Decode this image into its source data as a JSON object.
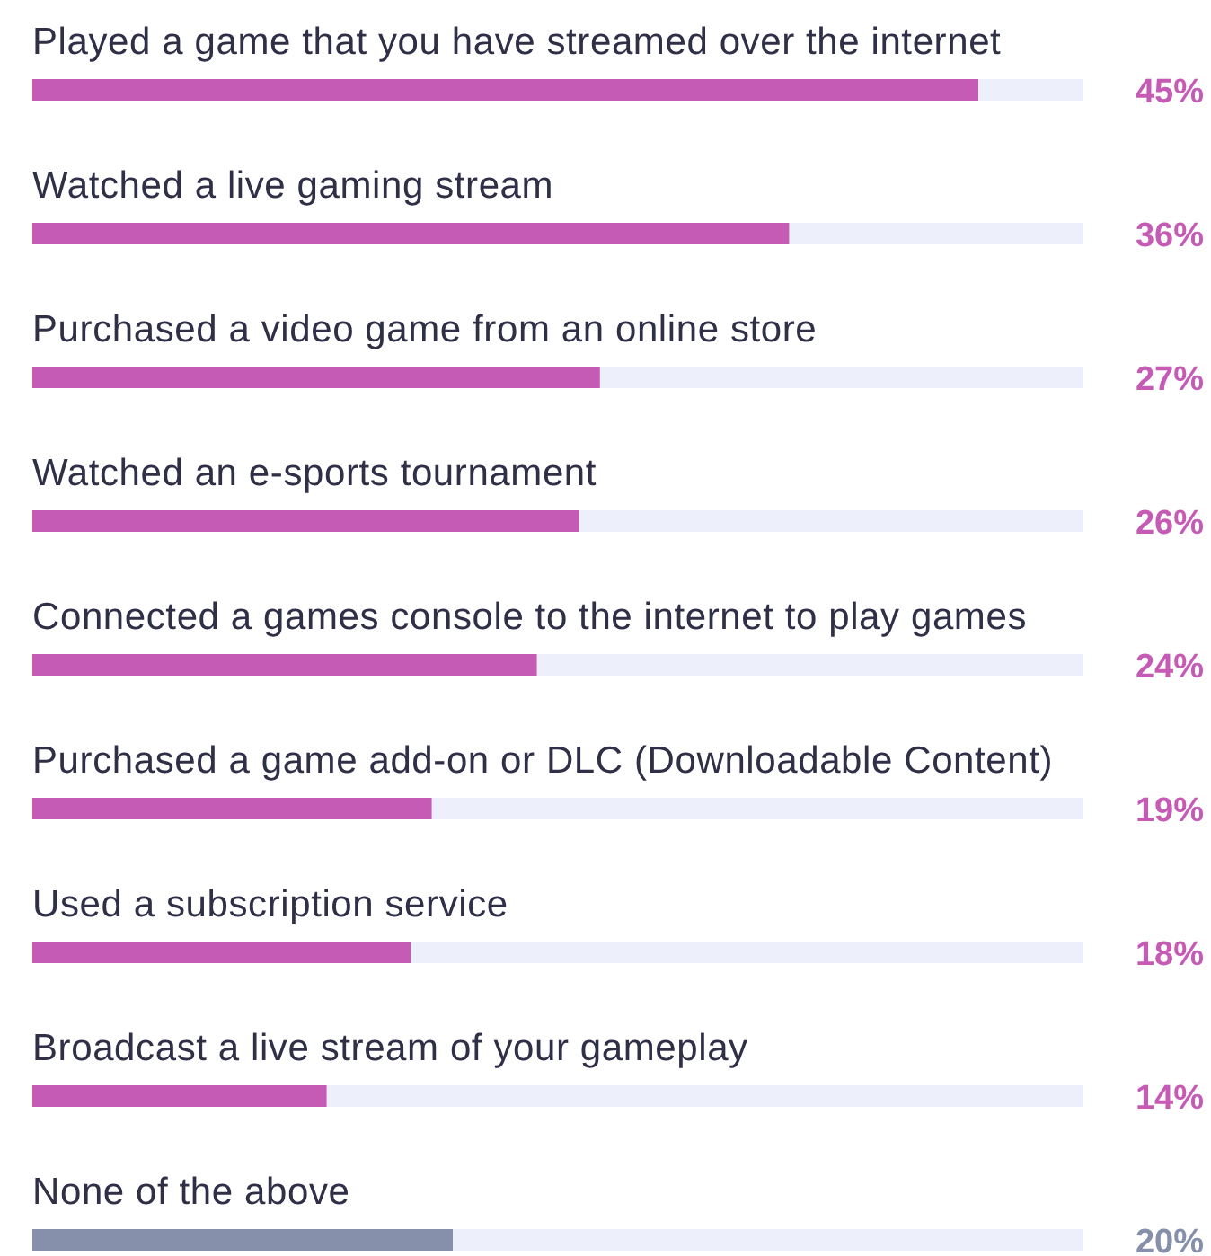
{
  "chart_data": {
    "type": "bar",
    "orientation": "horizontal",
    "xlim": [
      0,
      50
    ],
    "categories": [
      "Played a game that you have streamed over the internet",
      "Watched a live gaming stream",
      "Purchased a video game from an online store",
      "Watched an e-sports tournament",
      "Connected a games console to the internet to play games",
      "Purchased a game add-on or DLC (Downloadable Content)",
      "Used a subscription service",
      "Broadcast a live stream of your gameplay",
      "None of the above"
    ],
    "values": [
      45,
      36,
      27,
      26,
      24,
      19,
      18,
      14,
      20
    ],
    "value_labels": [
      "45%",
      "36%",
      "27%",
      "26%",
      "24%",
      "19%",
      "18%",
      "14%",
      "20%"
    ],
    "colors": [
      "#c65bb5",
      "#c65bb5",
      "#c65bb5",
      "#c65bb5",
      "#c65bb5",
      "#c65bb5",
      "#c65bb5",
      "#c65bb5",
      "#8790ab"
    ]
  }
}
